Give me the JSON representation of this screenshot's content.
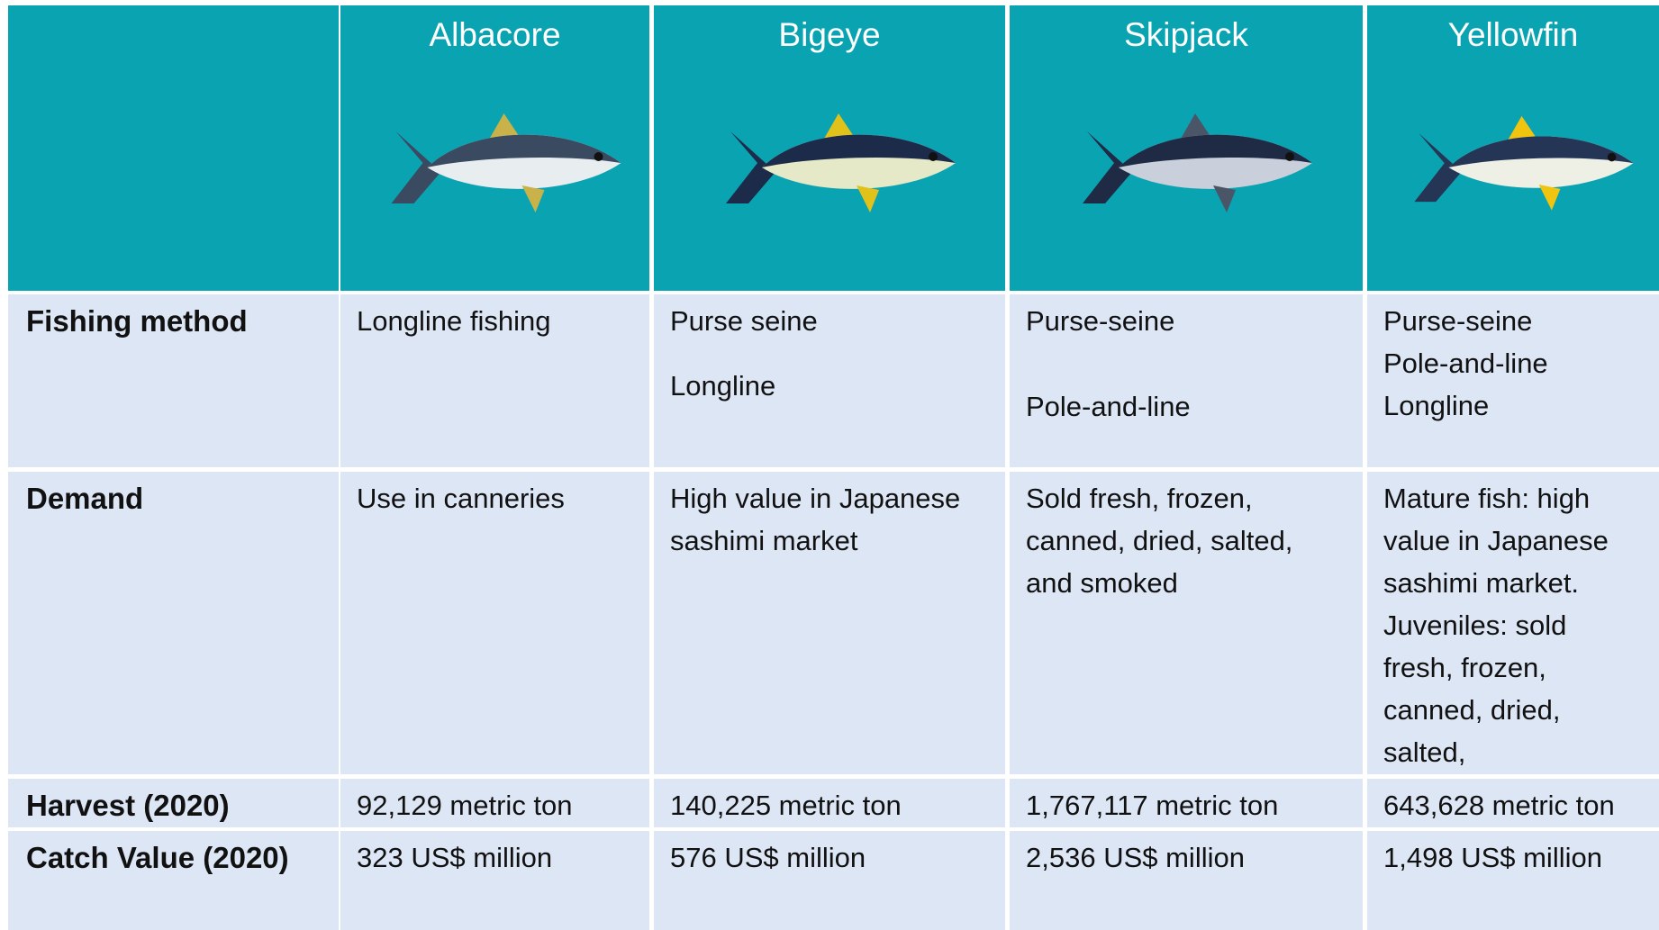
{
  "table": {
    "header": [
      "Albacore",
      "Bigeye",
      "Skipjack",
      "Yellowfin"
    ],
    "rows": [
      {
        "label": "Fishing method",
        "cells": [
          [
            "Longline fishing"
          ],
          [
            "Purse seine",
            "Longline"
          ],
          [
            "Purse-seine",
            "Pole-and-line"
          ],
          [
            "Purse-seine",
            "Pole-and-line",
            "Longline"
          ]
        ]
      },
      {
        "label": "Demand",
        "cells": [
          "Use in canneries",
          "High value in Japanese sashimi market",
          "Sold fresh, frozen, canned, dried, salted, and smoked",
          "Mature fish: high value in Japanese sashimi market. Juveniles: sold fresh, frozen, canned, dried, salted,"
        ]
      },
      {
        "label": "Harvest (2020)",
        "cells": [
          "92,129 metric ton",
          "140,225 metric ton",
          "1,767,117 metric ton",
          "643,628 metric ton"
        ]
      },
      {
        "label": "Catch Value (2020)",
        "cells": [
          "323 US$ million",
          "576 US$ million",
          "2,536 US$ million",
          "1,498 US$ million"
        ]
      }
    ]
  }
}
